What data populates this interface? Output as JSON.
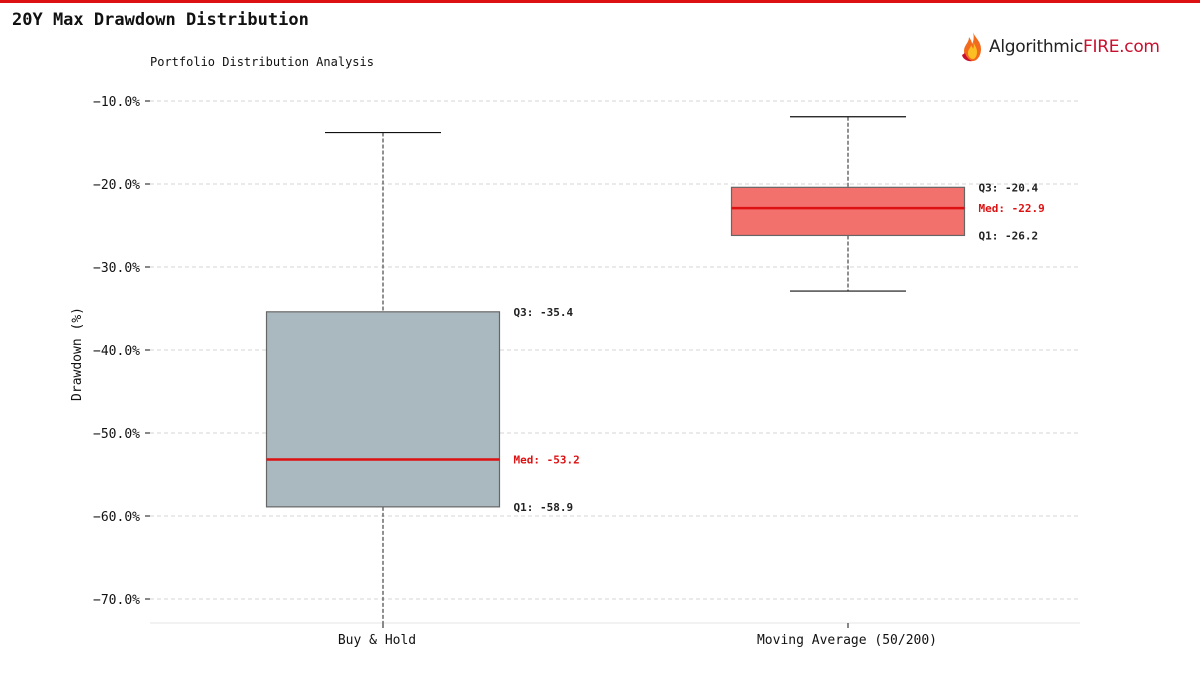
{
  "header": {
    "title": "20Y Max Drawdown Distribution",
    "subtitle": "Portfolio Distribution Analysis",
    "logo_part1": "Algorithmic",
    "logo_part2": "FIRE.com",
    "logo_icon": "flame-icon",
    "accent_color": "#dd1111"
  },
  "chart_data": {
    "type": "box",
    "ylabel": "Drawdown (%)",
    "ylim": [
      -73,
      -10
    ],
    "yticks": [
      -10,
      -20,
      -30,
      -40,
      -50,
      -60,
      -70
    ],
    "ytick_labels": [
      "−10.0%",
      "−20.0%",
      "−30.0%",
      "−40.0%",
      "−50.0%",
      "−60.0%",
      "−70.0%"
    ],
    "grid": true,
    "series": [
      {
        "category": "Buy & Hold",
        "whisker_high": -13.8,
        "q3": -35.4,
        "median": -53.2,
        "q1": -58.9,
        "whisker_low": -73,
        "fill_color": "#aab9bf",
        "annotations": {
          "q3": "Q3: -35.4",
          "median": "Med: -53.2",
          "q1": "Q1: -58.9"
        }
      },
      {
        "category": "Moving Average (50/200)",
        "whisker_high": -11.9,
        "q3": -20.4,
        "median": -22.9,
        "q1": -26.2,
        "whisker_low": -32.9,
        "fill_color": "#f2716c",
        "annotations": {
          "q3": "Q3: -20.4",
          "median": "Med: -22.9",
          "q1": "Q1: -26.2"
        }
      }
    ],
    "median_color": "#dd1111"
  }
}
